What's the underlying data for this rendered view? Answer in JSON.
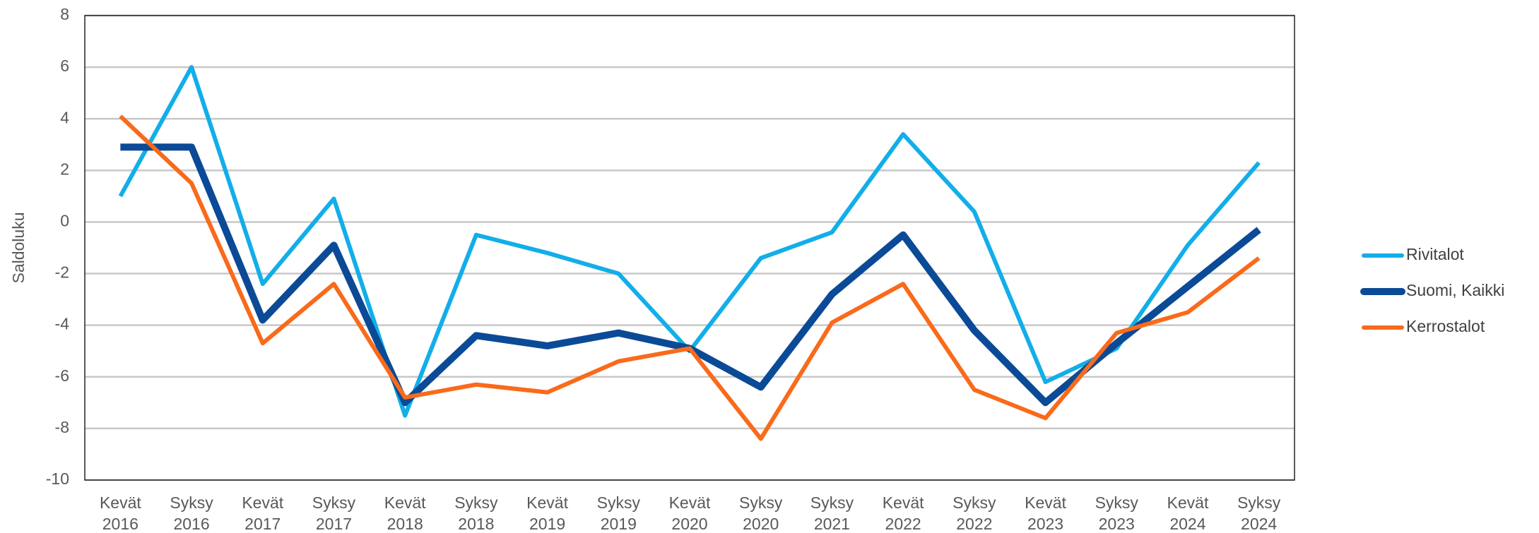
{
  "chart_data": {
    "type": "line",
    "y_label": "Saldoluku",
    "categories": [
      [
        "Kevät",
        "2016"
      ],
      [
        "Syksy",
        "2016"
      ],
      [
        "Kevät",
        "2017"
      ],
      [
        "Syksy",
        "2017"
      ],
      [
        "Kevät",
        "2018"
      ],
      [
        "Syksy",
        "2018"
      ],
      [
        "Kevät",
        "2019"
      ],
      [
        "Syksy",
        "2019"
      ],
      [
        "Kevät",
        "2020"
      ],
      [
        "Syksy",
        "2020"
      ],
      [
        "Syksy",
        "2021"
      ],
      [
        "Kevät",
        "2022"
      ],
      [
        "Syksy",
        "2022"
      ],
      [
        "Kevät",
        "2023"
      ],
      [
        "Syksy",
        "2023"
      ],
      [
        "Kevät",
        "2024"
      ],
      [
        "Syksy",
        "2024"
      ]
    ],
    "series": [
      {
        "name": "Rivitalot",
        "color": "#12aee9",
        "values": [
          1.0,
          6.0,
          -2.4,
          0.9,
          -7.5,
          -0.5,
          -1.2,
          -2.0,
          -5.0,
          -1.4,
          -0.4,
          3.4,
          0.4,
          -6.2,
          -4.9,
          -0.9,
          2.3
        ]
      },
      {
        "name": "Suomi, Kaikki",
        "color": "#0b4a96",
        "values": [
          2.9,
          2.9,
          -3.8,
          -0.9,
          -7.0,
          -4.4,
          -4.8,
          -4.3,
          -4.9,
          -6.4,
          -2.8,
          -0.5,
          -4.2,
          -7.0,
          -4.7,
          -2.5,
          -0.3
        ]
      },
      {
        "name": "Kerrostalot",
        "color": "#f96a1b",
        "values": [
          4.1,
          1.5,
          -4.7,
          -2.4,
          -6.8,
          -6.3,
          -6.6,
          -5.4,
          -4.9,
          -8.4,
          -3.9,
          -2.4,
          -6.5,
          -7.6,
          -4.3,
          -3.5,
          -1.4
        ]
      }
    ],
    "ylim": [
      -10,
      8
    ],
    "yticks": [
      -10,
      -8,
      -6,
      -4,
      -2,
      0,
      2,
      4,
      6,
      8
    ],
    "grid": true,
    "legend": "right"
  }
}
